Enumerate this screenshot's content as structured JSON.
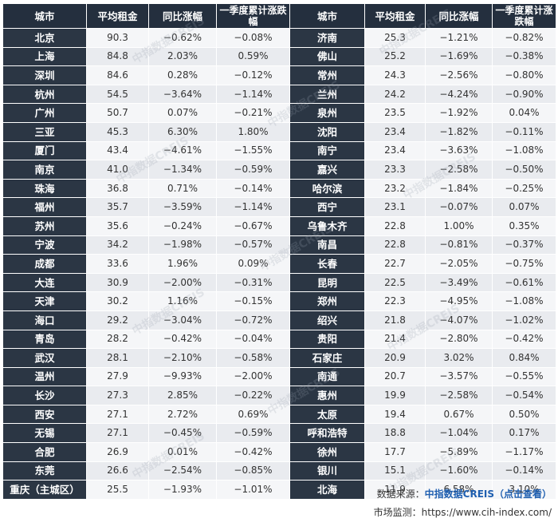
{
  "headers": {
    "city": "城市",
    "avg_rent": "平均租金",
    "yoy": "同比涨幅",
    "q1": "一季度累计涨跌幅"
  },
  "rows": [
    [
      [
        "北京",
        "90.3",
        "−0.62%",
        "−0.08%"
      ],
      [
        "济南",
        "25.3",
        "−1.21%",
        "−0.82%"
      ]
    ],
    [
      [
        "上海",
        "84.8",
        "2.03%",
        "0.59%"
      ],
      [
        "佛山",
        "25.2",
        "−1.69%",
        "−0.38%"
      ]
    ],
    [
      [
        "深圳",
        "84.6",
        "0.28%",
        "−0.12%"
      ],
      [
        "常州",
        "24.3",
        "−2.56%",
        "−0.80%"
      ]
    ],
    [
      [
        "杭州",
        "54.5",
        "−3.64%",
        "−1.14%"
      ],
      [
        "兰州",
        "24.2",
        "−4.24%",
        "−0.90%"
      ]
    ],
    [
      [
        "广州",
        "50.7",
        "0.07%",
        "−0.21%"
      ],
      [
        "泉州",
        "23.5",
        "−1.92%",
        "0.04%"
      ]
    ],
    [
      [
        "三亚",
        "45.3",
        "6.30%",
        "1.80%"
      ],
      [
        "沈阳",
        "23.4",
        "−1.82%",
        "−0.11%"
      ]
    ],
    [
      [
        "厦门",
        "43.4",
        "−4.61%",
        "−1.55%"
      ],
      [
        "南宁",
        "23.4",
        "−3.63%",
        "−1.08%"
      ]
    ],
    [
      [
        "南京",
        "41.0",
        "−1.34%",
        "−0.59%"
      ],
      [
        "嘉兴",
        "23.3",
        "−2.58%",
        "−0.50%"
      ]
    ],
    [
      [
        "珠海",
        "36.8",
        "0.71%",
        "−0.14%"
      ],
      [
        "哈尔滨",
        "23.2",
        "−1.84%",
        "−0.25%"
      ]
    ],
    [
      [
        "福州",
        "35.7",
        "−3.59%",
        "−1.14%"
      ],
      [
        "西宁",
        "23.1",
        "−0.07%",
        "0.07%"
      ]
    ],
    [
      [
        "苏州",
        "35.6",
        "−0.24%",
        "−0.67%"
      ],
      [
        "乌鲁木齐",
        "22.8",
        "1.00%",
        "0.35%"
      ]
    ],
    [
      [
        "宁波",
        "34.2",
        "−1.98%",
        "−0.57%"
      ],
      [
        "南昌",
        "22.8",
        "−0.81%",
        "−0.37%"
      ]
    ],
    [
      [
        "成都",
        "33.6",
        "1.96%",
        "0.09%"
      ],
      [
        "长春",
        "22.7",
        "−2.05%",
        "−0.75%"
      ]
    ],
    [
      [
        "大连",
        "30.9",
        "−2.00%",
        "−0.31%"
      ],
      [
        "昆明",
        "22.5",
        "−3.49%",
        "−0.61%"
      ]
    ],
    [
      [
        "天津",
        "30.2",
        "1.16%",
        "−0.15%"
      ],
      [
        "郑州",
        "22.3",
        "−4.95%",
        "−1.08%"
      ]
    ],
    [
      [
        "海口",
        "29.2",
        "−3.04%",
        "−0.72%"
      ],
      [
        "绍兴",
        "21.8",
        "−4.07%",
        "−1.02%"
      ]
    ],
    [
      [
        "青岛",
        "28.2",
        "−0.42%",
        "−0.04%"
      ],
      [
        "贵阳",
        "21.4",
        "−2.80%",
        "−0.42%"
      ]
    ],
    [
      [
        "武汉",
        "28.1",
        "−2.10%",
        "−0.58%"
      ],
      [
        "石家庄",
        "20.9",
        "3.02%",
        "0.84%"
      ]
    ],
    [
      [
        "温州",
        "27.9",
        "−9.93%",
        "−2.00%"
      ],
      [
        "南通",
        "20.7",
        "−3.57%",
        "−0.55%"
      ]
    ],
    [
      [
        "长沙",
        "27.3",
        "2.85%",
        "−0.22%"
      ],
      [
        "惠州",
        "19.9",
        "−2.58%",
        "−0.54%"
      ]
    ],
    [
      [
        "西安",
        "27.1",
        "2.72%",
        "0.69%"
      ],
      [
        "太原",
        "19.4",
        "0.67%",
        "0.50%"
      ]
    ],
    [
      [
        "无锡",
        "27.1",
        "−0.45%",
        "−0.59%"
      ],
      [
        "呼和浩特",
        "18.8",
        "−1.04%",
        "0.17%"
      ]
    ],
    [
      [
        "合肥",
        "26.9",
        "0.01%",
        "−0.42%"
      ],
      [
        "徐州",
        "17.7",
        "−5.89%",
        "−1.17%"
      ]
    ],
    [
      [
        "东莞",
        "26.6",
        "−2.54%",
        "−0.85%"
      ],
      [
        "银川",
        "15.1",
        "−1.60%",
        "−0.14%"
      ]
    ],
    [
      [
        "重庆（主城区）",
        "25.5",
        "−1.93%",
        "−1.01%"
      ],
      [
        "北海",
        "11.9",
        "6.58%",
        "3.10%"
      ]
    ]
  ],
  "footer": {
    "source_prefix": "数据来源：",
    "source_brand": "中指数据CREIS（点击查看）",
    "monitor": "市场监测：https://www.cih-index.com/"
  },
  "watermark": "中指数据CREIS"
}
